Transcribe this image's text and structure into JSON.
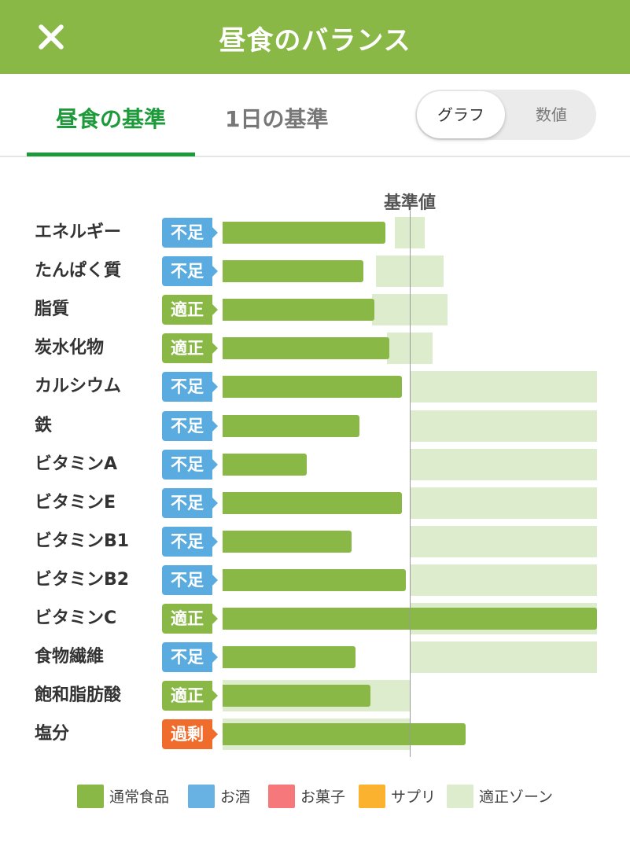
{
  "header": {
    "title": "昼食のバランス"
  },
  "tabs": [
    {
      "label": "昼食の基準"
    },
    {
      "label": "1日の基準"
    }
  ],
  "toggle": {
    "graph_label": "グラフ",
    "numeric_label": "数値",
    "selected": "グラフ"
  },
  "colors": {
    "header": "#8ab847",
    "tab_active": "#1d9a3a",
    "status_insufficient": "#5aace0",
    "status_adequate": "#8ab847",
    "status_excess": "#ef6c2c",
    "bar_food": "#8ab847",
    "zone": "#dceccd"
  },
  "chart_data": {
    "type": "bar",
    "orientation": "horizontal",
    "reference_label": "基準値",
    "reference_value": 100,
    "x_unit": "% of reference",
    "xlim": [
      0,
      200
    ],
    "categories": [
      "エネルギー",
      "たんぱく質",
      "脂質",
      "炭水化物",
      "カルシウム",
      "鉄",
      "ビタミンA",
      "ビタミンE",
      "ビタミンB1",
      "ビタミンB2",
      "ビタミンC",
      "食物繊維",
      "飽和脂肪酸",
      "塩分"
    ],
    "status": [
      "不足",
      "不足",
      "適正",
      "適正",
      "不足",
      "不足",
      "不足",
      "不足",
      "不足",
      "不足",
      "適正",
      "不足",
      "適正",
      "過剰"
    ],
    "series": [
      {
        "name": "通常食品",
        "color": "#8ab847",
        "values": [
          87,
          75,
          81,
          89,
          96,
          73,
          45,
          96,
          69,
          98,
          200,
          71,
          79,
          130
        ]
      }
    ],
    "adequate_range": [
      [
        92,
        108
      ],
      [
        82,
        118
      ],
      [
        80,
        120
      ],
      [
        88,
        112
      ],
      [
        100,
        200
      ],
      [
        100,
        200
      ],
      [
        100,
        200
      ],
      [
        100,
        200
      ],
      [
        100,
        200
      ],
      [
        100,
        200
      ],
      [
        100,
        200
      ],
      [
        100,
        200
      ],
      [
        0,
        100
      ],
      [
        0,
        100
      ]
    ],
    "legend": [
      {
        "label": "通常食品",
        "color": "#8ab847"
      },
      {
        "label": "お酒",
        "color": "#68b2e3"
      },
      {
        "label": "お菓子",
        "color": "#f7787b"
      },
      {
        "label": "サプリ",
        "color": "#fbb32f"
      },
      {
        "label": "適正ゾーン",
        "color": "#dceccd"
      }
    ]
  }
}
